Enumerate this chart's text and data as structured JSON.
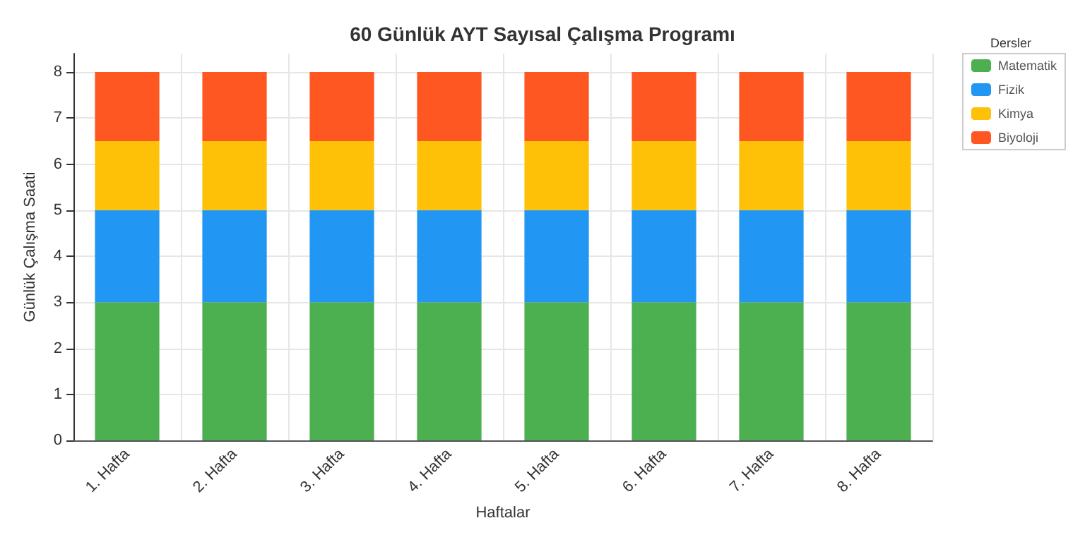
{
  "chart_data": {
    "type": "bar",
    "title": "60 Günlük AYT Sayısal Çalışma Programı",
    "xlabel": "Haftalar",
    "ylabel": "Günlük Çalışma Saati",
    "legend_title": "Dersler",
    "categories": [
      "1. Hafta",
      "2. Hafta",
      "3. Hafta",
      "4. Hafta",
      "5. Hafta",
      "6. Hafta",
      "7. Hafta",
      "8. Hafta"
    ],
    "stacked": true,
    "series": [
      {
        "name": "Matematik",
        "color": "#4caf50",
        "values": [
          3,
          3,
          3,
          3,
          3,
          3,
          3,
          3
        ]
      },
      {
        "name": "Fizik",
        "color": "#2196f3",
        "values": [
          2,
          2,
          2,
          2,
          2,
          2,
          2,
          2
        ]
      },
      {
        "name": "Kimya",
        "color": "#ffc107",
        "values": [
          1.5,
          1.5,
          1.5,
          1.5,
          1.5,
          1.5,
          1.5,
          1.5
        ]
      },
      {
        "name": "Biyoloji",
        "color": "#ff5722",
        "values": [
          1.5,
          1.5,
          1.5,
          1.5,
          1.5,
          1.5,
          1.5,
          1.5
        ]
      }
    ],
    "ylim": [
      0,
      8.4
    ],
    "yticks": [
      0,
      1,
      2,
      3,
      4,
      5,
      6,
      7,
      8
    ],
    "grid": true,
    "legend": "top right"
  }
}
